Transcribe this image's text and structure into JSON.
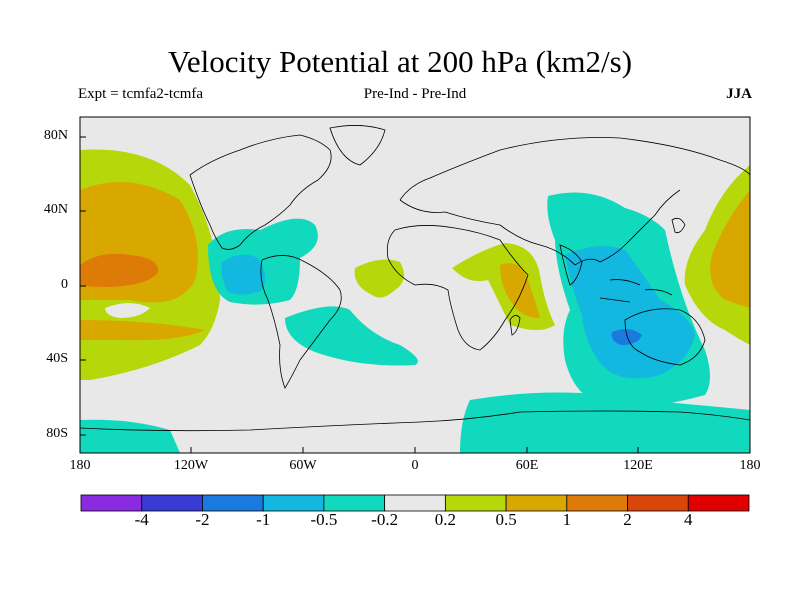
{
  "title": "Velocity Potential at 200 hPa (km2/s)",
  "subtitle_left": "Expt = tcmfa2-tcmfa",
  "subtitle_center": "Pre-Ind - Pre-Ind",
  "subtitle_right": "JJA",
  "map": {
    "lat_ticks": [
      "80N",
      "40N",
      "0",
      "40S",
      "80S"
    ],
    "lon_ticks": [
      "180",
      "120W",
      "60W",
      "0",
      "60E",
      "120E",
      "180"
    ],
    "background_color": "#e8e8e8"
  },
  "colorbar": {
    "colors": [
      "#8a2be2",
      "#3a3ad4",
      "#1a7ae0",
      "#12b8e0",
      "#10d9bd",
      "#e8e8e8",
      "#b6d80a",
      "#d9a800",
      "#dd7a08",
      "#d8460c",
      "#e00000"
    ],
    "labels": [
      "-4",
      "-2",
      "-1",
      "-0.5",
      "-0.2",
      "0.2",
      "0.5",
      "1",
      "2",
      "4"
    ]
  }
}
